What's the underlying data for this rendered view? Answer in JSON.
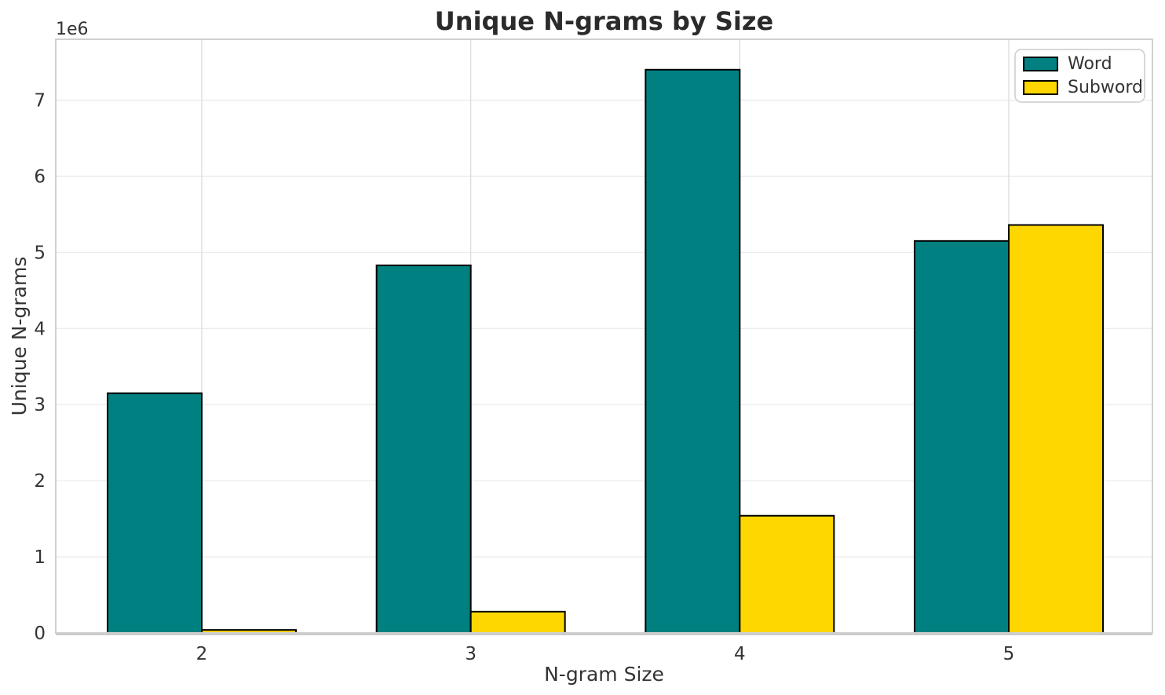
{
  "chart_data": {
    "type": "bar",
    "title": "Unique N-grams by Size",
    "xlabel": "N-gram Size",
    "ylabel": "Unique N-grams",
    "y_offset_text": "1e6",
    "categories": [
      "2",
      "3",
      "4",
      "5"
    ],
    "series": [
      {
        "name": "Word",
        "color": "#008080",
        "values": [
          3150000,
          4830000,
          7400000,
          5150000
        ]
      },
      {
        "name": "Subword",
        "color": "#FFD700",
        "values": [
          40000,
          280000,
          1540000,
          5360000
        ]
      }
    ],
    "ylim": [
      0,
      7800000
    ],
    "ytick_values": [
      0,
      1000000,
      2000000,
      3000000,
      4000000,
      5000000,
      6000000,
      7000000
    ],
    "ytick_labels": [
      "0",
      "1",
      "2",
      "3",
      "4",
      "5",
      "6",
      "7"
    ],
    "grid": true,
    "legend_position": "upper right",
    "style": {
      "bar_edge_color": "#000000",
      "grid_color_horizontal": "#ececec",
      "grid_color_vertical": "#dcdcdc",
      "spine_color": "#d0d0d0",
      "bottom_spine_color": "#cccccc",
      "legend_border_color": "#cccccc",
      "background_color": "#ffffff"
    }
  }
}
